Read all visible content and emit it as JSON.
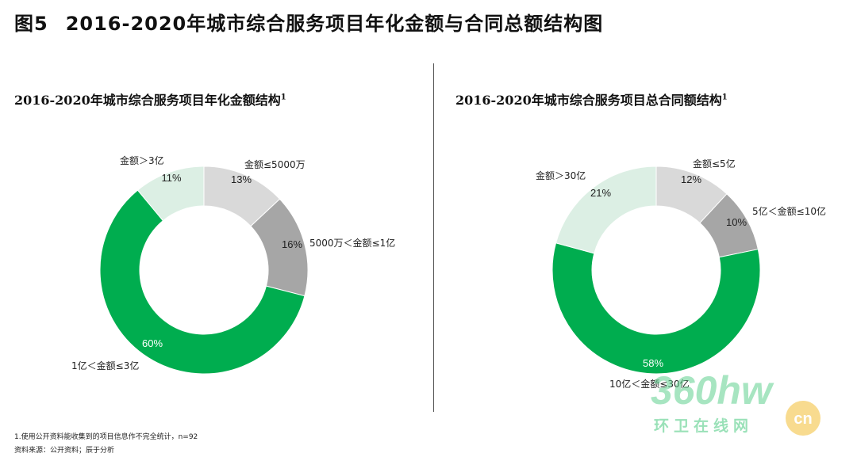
{
  "figure": {
    "label": "图5",
    "title": "2016-2020年城市综合服务项目年化金额与合同总额结构图"
  },
  "footnotes": {
    "note": "1.使用公开资料能收集到的项目信息作不完全统计，n=92",
    "source": "资料来源：公开资料；辰于分析"
  },
  "watermark": {
    "brand": "360hw",
    "tag": "cn",
    "subtitle": "环卫在线网"
  },
  "colors": {
    "light_gray": "#d9d9d9",
    "mid_gray": "#a6a6a6",
    "green": "#00ad4f",
    "pale_green": "#dcefe4"
  },
  "chart_data": [
    {
      "type": "donut",
      "title": "2016-2020年城市综合服务项目年化金额结构",
      "title_sup": "1",
      "slices": [
        {
          "label": "金额≤5000万",
          "value": 13,
          "display": "13%",
          "color": "#d9d9d9"
        },
        {
          "label": "5000万＜金额≤1亿",
          "value": 16,
          "display": "16%",
          "color": "#a6a6a6"
        },
        {
          "label": "1亿＜金额≤3亿",
          "value": 60,
          "display": "60%",
          "color": "#00ad4f"
        },
        {
          "label": "金额＞3亿",
          "value": 11,
          "display": "11%",
          "color": "#dcefe4"
        }
      ]
    },
    {
      "type": "donut",
      "title": "2016-2020年城市综合服务项目总合同额结构",
      "title_sup": "1",
      "slices": [
        {
          "label": "金额≤5亿",
          "value": 12,
          "display": "12%",
          "color": "#d9d9d9"
        },
        {
          "label": "5亿＜金额≤10亿",
          "value": 10,
          "display": "10%",
          "color": "#a6a6a6"
        },
        {
          "label": "10亿＜金额≤30亿",
          "value": 58,
          "display": "58%",
          "color": "#00ad4f"
        },
        {
          "label": "金额＞30亿",
          "value": 21,
          "display": "21%",
          "color": "#dcefe4"
        }
      ]
    }
  ]
}
